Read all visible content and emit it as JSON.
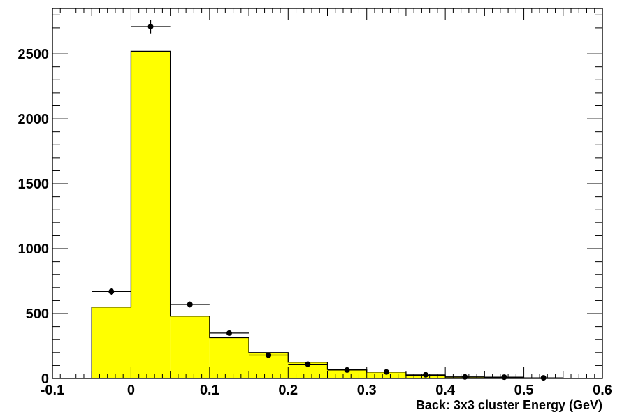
{
  "chart_data": {
    "type": "bar",
    "title": "",
    "xlabel": "Back: 3x3 cluster Energy (GeV)",
    "ylabel": "",
    "xlim": [
      -0.1,
      0.6
    ],
    "ylim": [
      0,
      2850
    ],
    "grid": false,
    "x_ticks": [
      "-0.1",
      "0",
      "0.1",
      "0.2",
      "0.3",
      "0.4",
      "0.5",
      "0.6"
    ],
    "y_ticks": [
      "0",
      "500",
      "1000",
      "1500",
      "2000",
      "2500"
    ],
    "histogram": {
      "name": "",
      "fill_color": "#ffff00",
      "bin_edges": [
        -0.05,
        0.0,
        0.05,
        0.1,
        0.15,
        0.2,
        0.25,
        0.3,
        0.35,
        0.4,
        0.45,
        0.5,
        0.55
      ],
      "values": [
        550,
        2520,
        480,
        315,
        200,
        125,
        70,
        50,
        25,
        10,
        5,
        3
      ]
    },
    "points": {
      "name": "",
      "color": "#000000",
      "x": [
        -0.025,
        0.025,
        0.075,
        0.125,
        0.175,
        0.225,
        0.275,
        0.325,
        0.375,
        0.425,
        0.475,
        0.525
      ],
      "y": [
        670,
        2710,
        570,
        350,
        180,
        110,
        65,
        50,
        28,
        12,
        10,
        5
      ],
      "yerr": [
        26,
        52,
        24,
        19,
        13,
        10,
        8,
        7,
        5,
        3,
        3,
        2
      ]
    }
  }
}
